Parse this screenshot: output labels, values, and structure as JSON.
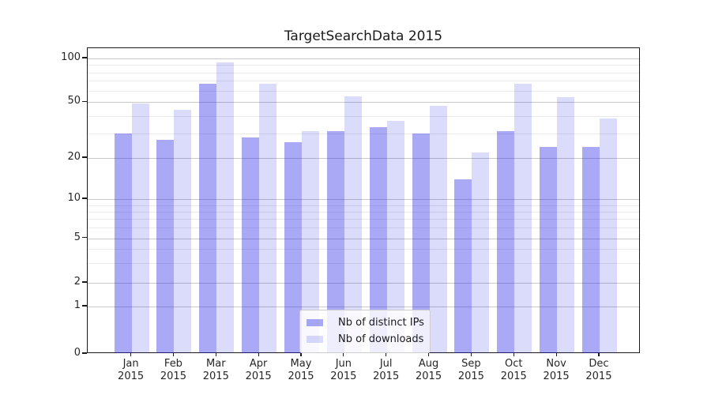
{
  "figure": {
    "title": "TargetSearchData 2015"
  },
  "legend": {
    "items": [
      {
        "label": "Nb of distinct IPs",
        "color_hex": "#a9a9f4",
        "fill": "rgba(30,30,230,0.38)"
      },
      {
        "label": "Nb of downloads",
        "color_hex": "#dbdbf9",
        "fill": "rgba(30,30,230,0.16)"
      }
    ]
  },
  "axes": {
    "ytick_values": [
      100,
      50,
      20,
      10,
      5,
      2,
      1,
      0
    ],
    "minor_gridline_values": [
      90,
      80,
      70,
      60,
      40,
      30,
      9,
      8,
      7,
      6,
      4,
      3
    ],
    "months": [
      "Jan",
      "Feb",
      "Mar",
      "Apr",
      "May",
      "Jun",
      "Jul",
      "Aug",
      "Sep",
      "Oct",
      "Nov",
      "Dec"
    ],
    "year": "2015"
  },
  "chart_data": {
    "type": "bar",
    "title": "TargetSearchData 2015",
    "categories": [
      "Jan 2015",
      "Feb 2015",
      "Mar 2015",
      "Apr 2015",
      "May 2015",
      "Jun 2015",
      "Jul 2015",
      "Aug 2015",
      "Sep 2015",
      "Oct 2015",
      "Nov 2015",
      "Dec 2015"
    ],
    "series": [
      {
        "name": "Nb of distinct IPs",
        "values": [
          30,
          27,
          67,
          28,
          26,
          31,
          33,
          30,
          14,
          31,
          24,
          24
        ]
      },
      {
        "name": "Nb of downloads",
        "values": [
          49,
          44,
          94,
          67,
          31,
          55,
          37,
          47,
          22,
          67,
          54,
          38
        ]
      }
    ],
    "yscale": "symlog",
    "yticks": [
      0,
      1,
      2,
      5,
      10,
      20,
      50,
      100
    ],
    "ylim": [
      0,
      110
    ],
    "grid": true,
    "legend_position": "lower center"
  }
}
